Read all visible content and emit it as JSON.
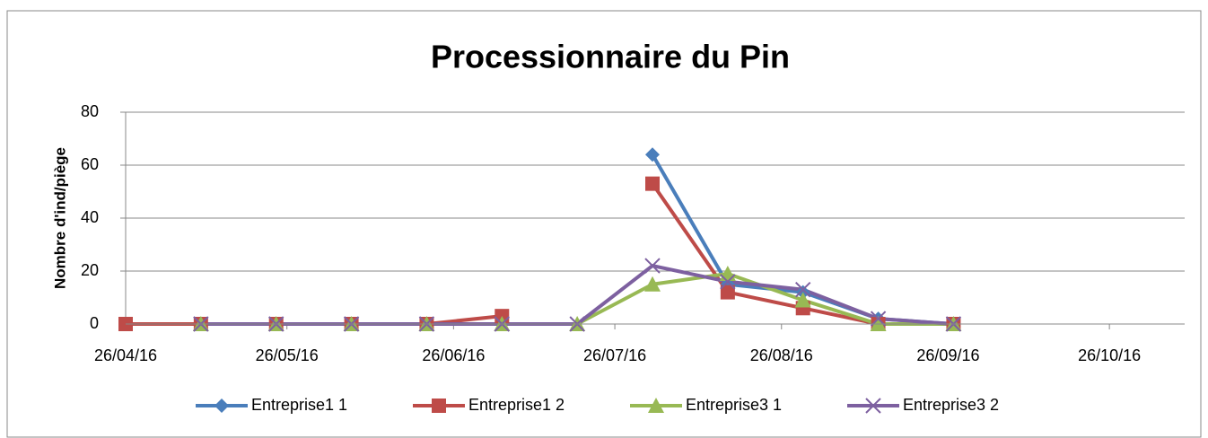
{
  "chart_data": {
    "type": "line",
    "title": "Processionnaire du Pin",
    "y_label": "Nombre d'ind/piège",
    "x": [
      "26/04/16",
      "10/05/16",
      "24/05/16",
      "07/06/16",
      "21/06/16",
      "05/07/16",
      "19/07/16",
      "02/08/16",
      "16/08/16",
      "30/08/16",
      "13/09/16",
      "27/09/16"
    ],
    "series": [
      {
        "name": "Entreprise1 1",
        "color": "#4a7ebb",
        "marker": "diamond",
        "values": [
          null,
          null,
          null,
          null,
          null,
          null,
          null,
          64,
          15,
          12,
          2,
          0
        ]
      },
      {
        "name": "Entreprise1 2",
        "color": "#be4b48",
        "marker": "square",
        "values": [
          0,
          0,
          0,
          0,
          0,
          3,
          null,
          53,
          12,
          6,
          0,
          0
        ]
      },
      {
        "name": "Entreprise3 1",
        "color": "#98b954",
        "marker": "triangle",
        "values": [
          null,
          0,
          0,
          0,
          0,
          0,
          0,
          15,
          19,
          9,
          0,
          0
        ]
      },
      {
        "name": "Entreprise3 2",
        "color": "#7d60a0",
        "marker": "x",
        "values": [
          null,
          0,
          0,
          0,
          0,
          0,
          0,
          22,
          16,
          13,
          2,
          0
        ]
      }
    ],
    "xlim": [
      "26/04/16",
      "09/11/16"
    ],
    "xticks": [
      "26/04/16",
      "26/05/16",
      "26/06/16",
      "26/07/16",
      "26/08/16",
      "26/09/16",
      "26/10/16"
    ],
    "ylim": [
      0,
      80
    ],
    "yticks": [
      0,
      20,
      40,
      60,
      80
    ],
    "grid": true,
    "legend": "bottom"
  }
}
